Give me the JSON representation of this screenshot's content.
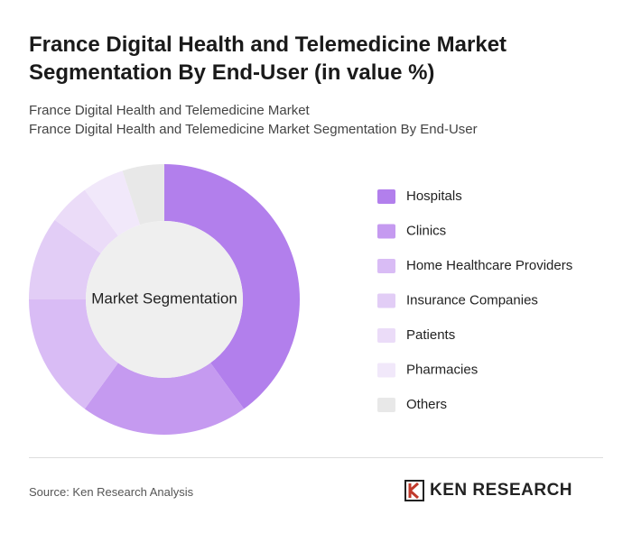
{
  "chart_data": {
    "type": "donut",
    "title": "France Digital Health and Telemedicine Market Segmentation By End-User (in value %)",
    "subtitle": "France Digital Health and Telemedicine Market",
    "subtitle2": "France Digital Health and Telemedicine Market Segmentation By End-User",
    "center_label": "Market Segmentation",
    "categories": [
      "Hospitals",
      "Clinics",
      "Home Healthcare Providers",
      "Insurance Companies",
      "Patients",
      "Pharmacies",
      "Others"
    ],
    "values": [
      40,
      20,
      15,
      10,
      5,
      5,
      5
    ],
    "colors": [
      "#b27fec",
      "#c59af0",
      "#d9bcf5",
      "#e2cdf6",
      "#ebdcf8",
      "#f1e8fa",
      "#e8e8e8"
    ],
    "source": "Source: Ken Research Analysis",
    "logo": "KEN RESEARCH"
  }
}
